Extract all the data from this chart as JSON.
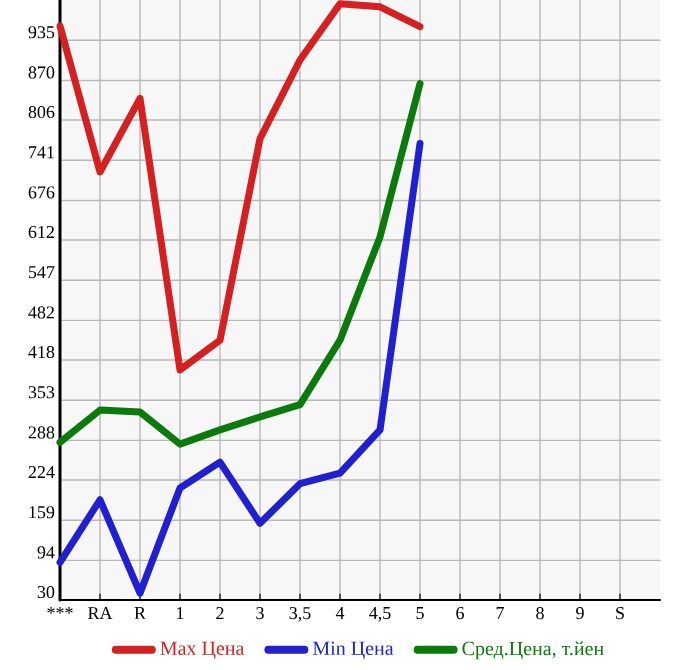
{
  "chart_data": {
    "type": "line",
    "categories": [
      "***",
      "RA",
      "R",
      "1",
      "2",
      "3",
      "3,5",
      "4",
      "4,5",
      "5",
      "6",
      "7",
      "8",
      "9",
      "S"
    ],
    "series": [
      {
        "name": "Max Цена",
        "color": "#d42020",
        "values": [
          958,
          722,
          841,
          402,
          450,
          776,
          903,
          994,
          989,
          957,
          null,
          null,
          null,
          null,
          null
        ]
      },
      {
        "name": "Min Цена",
        "color": "#2020d0",
        "values": [
          91,
          192,
          41,
          211,
          253,
          154,
          218,
          235,
          305,
          768,
          null,
          null,
          null,
          null,
          null
        ]
      },
      {
        "name": "Сред.Цена, т.йен",
        "color": "#0a7a0a",
        "values": [
          285,
          337,
          334,
          282,
          305,
          326,
          346,
          450,
          617,
          865,
          null,
          null,
          null,
          null,
          null
        ]
      }
    ],
    "ylim": [
      30,
      1000
    ],
    "yticks": [
      30,
      94,
      159,
      224,
      288,
      353,
      418,
      482,
      547,
      612,
      676,
      741,
      806,
      870,
      935
    ],
    "grid": true,
    "legend": "bottom",
    "marker": "none",
    "line_style": "solid"
  }
}
